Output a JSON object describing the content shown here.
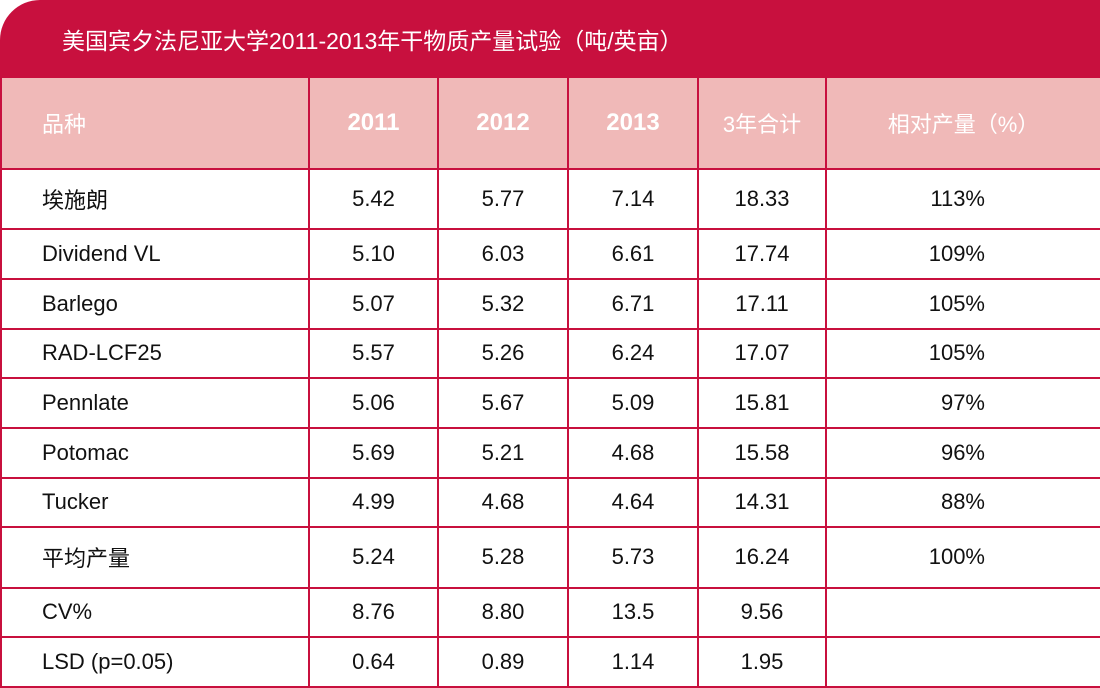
{
  "title": "美国宾夕法尼亚大学2011-2013年干物质产量试验（吨/英亩）",
  "table": {
    "header": [
      "品种",
      "2011",
      "2012",
      "2013",
      "3年合计",
      "相对产量（%）"
    ],
    "rows": [
      [
        "埃施朗",
        "5.42",
        "5.77",
        "7.14",
        "18.33",
        "113%"
      ],
      [
        "Dividend VL",
        "5.10",
        "6.03",
        "6.61",
        "17.74",
        "109%"
      ],
      [
        "Barlego",
        "5.07",
        "5.32",
        "6.71",
        "17.11",
        "105%"
      ],
      [
        "RAD-LCF25",
        "5.57",
        "5.26",
        "6.24",
        "17.07",
        "105%"
      ],
      [
        "Pennlate",
        "5.06",
        "5.67",
        "5.09",
        "15.81",
        "97%"
      ],
      [
        "Potomac",
        "5.69",
        "5.21",
        "4.68",
        "15.58",
        "96%"
      ],
      [
        "Tucker",
        "4.99",
        "4.68",
        "4.64",
        "14.31",
        "88%"
      ],
      [
        "平均产量",
        "5.24",
        "5.28",
        "5.73",
        "16.24",
        "100%"
      ],
      [
        "CV%",
        "8.76",
        "8.80",
        "13.5",
        "9.56"
      ],
      [
        "LSD (p=0.05)",
        "0.64",
        "0.89",
        "1.14",
        "1.95"
      ]
    ]
  }
}
